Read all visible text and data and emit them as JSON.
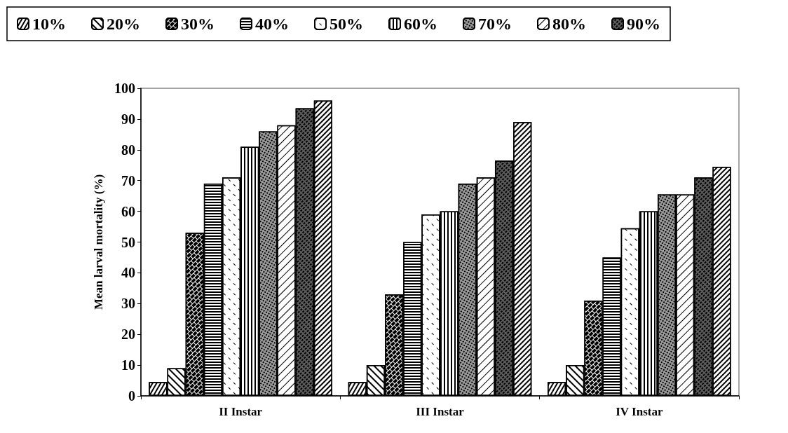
{
  "chart_data": {
    "type": "bar",
    "ylabel": "Mean larval mortality (%)",
    "categories": [
      "II Instar",
      "III Instar",
      "IV Instar"
    ],
    "series": [
      {
        "name": "10%",
        "color": "#ffffff",
        "values": [
          4.5,
          4.5,
          4.5
        ]
      },
      {
        "name": "20%",
        "color": "#ffffff",
        "values": [
          9,
          10,
          10
        ]
      },
      {
        "name": "30%",
        "color": "#ffffff",
        "values": [
          53,
          33,
          31
        ]
      },
      {
        "name": "40%",
        "color": "#ffffff",
        "values": [
          69,
          50,
          45
        ]
      },
      {
        "name": "50%",
        "color": "#ffffff",
        "values": [
          71,
          59,
          54.5
        ]
      },
      {
        "name": "60%",
        "color": "#ffffff",
        "values": [
          81,
          60,
          60
        ]
      },
      {
        "name": "70%",
        "color": "#9a9a9a",
        "values": [
          86,
          69,
          65.5
        ]
      },
      {
        "name": "80%",
        "color": "#ffffff",
        "values": [
          88,
          71,
          65.5
        ]
      },
      {
        "name": "90%",
        "color": "#5a5a5a",
        "values": [
          93.5,
          76.5,
          71
        ]
      },
      {
        "color": "#ffffff",
        "values": [
          96,
          89,
          74.5
        ]
      }
    ],
    "ylim": [
      0,
      100
    ],
    "yticks": [
      0,
      10,
      20,
      30,
      40,
      50,
      60,
      70,
      80,
      90,
      100
    ],
    "grid": false,
    "legend": "top"
  }
}
